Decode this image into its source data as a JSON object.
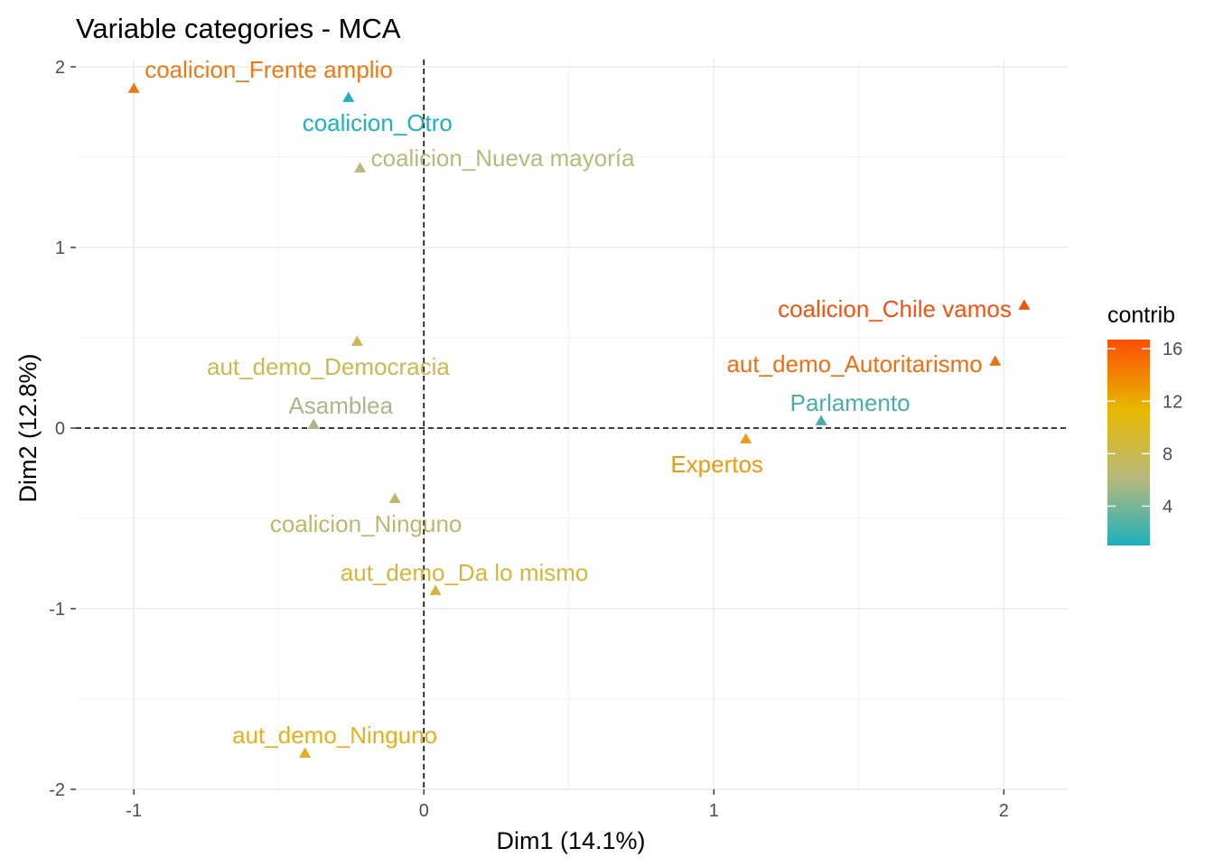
{
  "chart_data": {
    "type": "scatter",
    "title": "Variable categories - MCA",
    "xlabel": "Dim1 (14.1%)",
    "ylabel": "Dim2 (12.8%)",
    "xlim": [
      -1.2,
      2.22
    ],
    "ylim": [
      -2.0,
      2.04
    ],
    "xticks": [
      -1,
      0,
      1,
      2
    ],
    "yticks": [
      -2,
      -1,
      0,
      1,
      2
    ],
    "x_tick_labels": [
      "-1",
      "0",
      "1",
      "2"
    ],
    "y_tick_labels": [
      "-2",
      "-1",
      "0",
      "1",
      "2"
    ],
    "grid": true,
    "reference_lines": {
      "x": 0,
      "y": 0,
      "style": "dashed"
    },
    "marker": "triangle",
    "points": [
      {
        "label": "coalicion_Frente amplio",
        "x": -1.0,
        "y": 1.88,
        "contrib": 13.5,
        "color": "#F07814"
      },
      {
        "label": "coalicion_Otro",
        "x": -0.26,
        "y": 1.83,
        "contrib": 1.0,
        "color": "#1FAFBD"
      },
      {
        "label": "coalicion_Nueva mayoría",
        "x": -0.22,
        "y": 1.44,
        "contrib": 5.5,
        "color": "#B8B97A"
      },
      {
        "label": "coalicion_Chile vamos",
        "x": 2.07,
        "y": 0.68,
        "contrib": 16.5,
        "color": "#F5520F"
      },
      {
        "label": "aut_demo_Autoritarismo",
        "x": 1.97,
        "y": 0.37,
        "contrib": 14.0,
        "color": "#EE6E14"
      },
      {
        "label": "aut_demo_Democracia",
        "x": -0.23,
        "y": 0.48,
        "contrib": 7.0,
        "color": "#CFB650"
      },
      {
        "label": "Asamblea",
        "x": -0.38,
        "y": 0.02,
        "contrib": 5.0,
        "color": "#A7B888"
      },
      {
        "label": "Parlamento",
        "x": 1.37,
        "y": 0.04,
        "contrib": 2.0,
        "color": "#4AADA8"
      },
      {
        "label": "Expertos",
        "x": 1.11,
        "y": -0.06,
        "contrib": 11.0,
        "color": "#EC9A10"
      },
      {
        "label": "coalicion_Ninguno",
        "x": -0.1,
        "y": -0.39,
        "contrib": 6.0,
        "color": "#BDB76E"
      },
      {
        "label": "aut_demo_Da lo mismo",
        "x": 0.04,
        "y": -0.9,
        "contrib": 8.0,
        "color": "#D9B43A"
      },
      {
        "label": "aut_demo_Ninguno",
        "x": -0.41,
        "y": -1.8,
        "contrib": 9.5,
        "color": "#E6AE1A"
      }
    ],
    "legend": {
      "title": "contrib",
      "placement": "right",
      "range": [
        1.0,
        16.7
      ],
      "ticks": [
        4,
        8,
        12,
        16
      ],
      "tick_labels": [
        "4",
        "8",
        "12",
        "16"
      ],
      "gradient": [
        "#1FAFBD",
        "#B8B97A",
        "#E7B800",
        "#FC4E07"
      ]
    }
  }
}
